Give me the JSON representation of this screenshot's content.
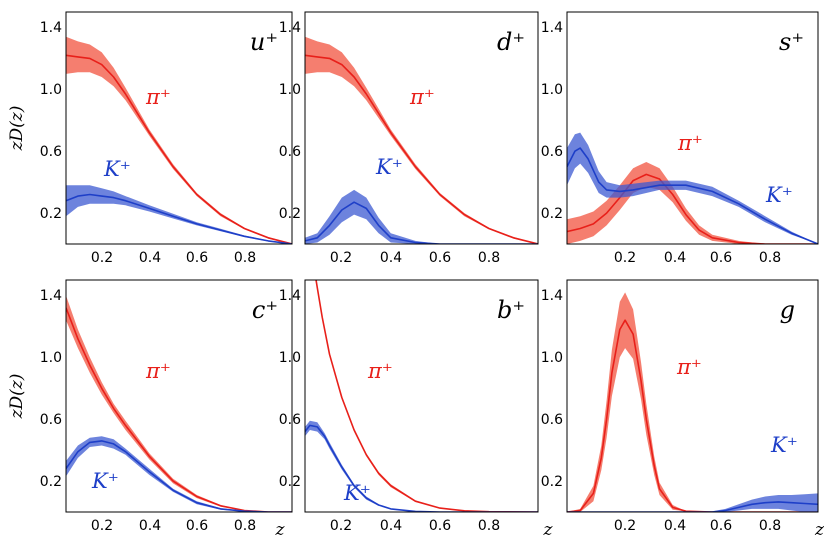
{
  "chart_data": [
    {
      "type": "area",
      "title": "u⁺",
      "xlim": [
        0.05,
        1.0
      ],
      "ylim": [
        0.0,
        1.5
      ],
      "ylabel": "zD(z)",
      "xlabel": "",
      "xticks": [
        "0.2",
        "0.4",
        "0.6",
        "0.8"
      ],
      "yticks": [
        "0.2",
        "0.6",
        "1.0",
        "1.4"
      ],
      "series": [
        {
          "name": "π⁺",
          "color": "#e8201a",
          "band_color": "#f2533f",
          "x": [
            0.05,
            0.1,
            0.15,
            0.2,
            0.25,
            0.3,
            0.4,
            0.5,
            0.6,
            0.7,
            0.8,
            0.9,
            1.0
          ],
          "y": [
            1.22,
            1.21,
            1.2,
            1.16,
            1.08,
            0.97,
            0.72,
            0.5,
            0.32,
            0.19,
            0.1,
            0.04,
            0.0
          ],
          "band": [
            0.12,
            0.1,
            0.09,
            0.08,
            0.06,
            0.04,
            0.02,
            0.015,
            0.01,
            0.01,
            0.005,
            0.005,
            0.0
          ]
        },
        {
          "name": "K⁺",
          "color": "#1e3fc8",
          "band_color": "#3c5ad2",
          "x": [
            0.05,
            0.1,
            0.15,
            0.2,
            0.25,
            0.3,
            0.4,
            0.5,
            0.6,
            0.7,
            0.8,
            0.9,
            1.0
          ],
          "y": [
            0.28,
            0.31,
            0.32,
            0.31,
            0.3,
            0.28,
            0.23,
            0.18,
            0.13,
            0.09,
            0.05,
            0.02,
            0.0
          ],
          "band": [
            0.1,
            0.07,
            0.06,
            0.05,
            0.04,
            0.03,
            0.02,
            0.015,
            0.01,
            0.008,
            0.005,
            0.003,
            0.0
          ]
        }
      ]
    },
    {
      "type": "area",
      "title": "d⁺",
      "xlim": [
        0.05,
        1.0
      ],
      "ylim": [
        0.0,
        1.5
      ],
      "ylabel": "",
      "xlabel": "",
      "xticks": [
        "0.2",
        "0.4",
        "0.6",
        "0.8"
      ],
      "yticks": [
        "0.2",
        "0.6",
        "1.0",
        "1.4"
      ],
      "series": [
        {
          "name": "π⁺",
          "color": "#e8201a",
          "band_color": "#f2533f",
          "x": [
            0.05,
            0.1,
            0.15,
            0.2,
            0.25,
            0.3,
            0.4,
            0.5,
            0.6,
            0.7,
            0.8,
            0.9,
            1.0
          ],
          "y": [
            1.22,
            1.21,
            1.2,
            1.16,
            1.08,
            0.97,
            0.72,
            0.5,
            0.32,
            0.19,
            0.1,
            0.04,
            0.0
          ],
          "band": [
            0.12,
            0.1,
            0.09,
            0.08,
            0.06,
            0.04,
            0.02,
            0.015,
            0.01,
            0.01,
            0.005,
            0.005,
            0.0
          ]
        },
        {
          "name": "K⁺",
          "color": "#1e3fc8",
          "band_color": "#3c5ad2",
          "x": [
            0.05,
            0.1,
            0.15,
            0.2,
            0.25,
            0.3,
            0.35,
            0.4,
            0.5,
            0.6,
            0.8,
            1.0
          ],
          "y": [
            0.02,
            0.04,
            0.12,
            0.22,
            0.27,
            0.23,
            0.12,
            0.04,
            0.01,
            0.0,
            0.0,
            0.0
          ],
          "band": [
            0.02,
            0.03,
            0.06,
            0.08,
            0.08,
            0.07,
            0.05,
            0.03,
            0.01,
            0.0,
            0.0,
            0.0
          ]
        }
      ]
    },
    {
      "type": "area",
      "title": "s⁺",
      "xlim": [
        0.05,
        1.0
      ],
      "ylim": [
        0.0,
        1.5
      ],
      "ylabel": "",
      "xlabel": "",
      "xticks": [
        "0.2",
        "0.4",
        "0.6",
        "0.8"
      ],
      "yticks": [
        "0.2",
        "0.6",
        "1.0",
        "1.4"
      ],
      "series": [
        {
          "name": "π⁺",
          "color": "#e8201a",
          "band_color": "#f2533f",
          "x": [
            0.05,
            0.1,
            0.15,
            0.2,
            0.25,
            0.3,
            0.35,
            0.4,
            0.45,
            0.5,
            0.55,
            0.6,
            0.7,
            0.8,
            1.0
          ],
          "y": [
            0.08,
            0.1,
            0.13,
            0.2,
            0.3,
            0.41,
            0.45,
            0.42,
            0.32,
            0.19,
            0.09,
            0.04,
            0.01,
            0.0,
            0.0
          ],
          "band": [
            0.08,
            0.08,
            0.08,
            0.08,
            0.08,
            0.08,
            0.08,
            0.07,
            0.05,
            0.04,
            0.03,
            0.02,
            0.01,
            0.0,
            0.0
          ]
        },
        {
          "name": "K⁺",
          "color": "#1e3fc8",
          "band_color": "#3c5ad2",
          "x": [
            0.05,
            0.08,
            0.1,
            0.13,
            0.17,
            0.2,
            0.25,
            0.3,
            0.4,
            0.5,
            0.6,
            0.7,
            0.8,
            0.9,
            1.0
          ],
          "y": [
            0.5,
            0.6,
            0.62,
            0.55,
            0.4,
            0.35,
            0.34,
            0.35,
            0.38,
            0.38,
            0.34,
            0.26,
            0.16,
            0.07,
            0.0
          ],
          "band": [
            0.12,
            0.11,
            0.1,
            0.09,
            0.07,
            0.05,
            0.04,
            0.04,
            0.03,
            0.03,
            0.03,
            0.02,
            0.02,
            0.01,
            0.0
          ]
        }
      ]
    },
    {
      "type": "area",
      "title": "c⁺",
      "xlim": [
        0.05,
        1.0
      ],
      "ylim": [
        0.0,
        1.5
      ],
      "ylabel": "zD(z)",
      "xlabel": "z",
      "xticks": [
        "0.2",
        "0.4",
        "0.6",
        "0.8"
      ],
      "yticks": [
        "0.2",
        "0.6",
        "1.0",
        "1.4"
      ],
      "series": [
        {
          "name": "π⁺",
          "color": "#e8201a",
          "band_color": "#f2533f",
          "x": [
            0.05,
            0.1,
            0.15,
            0.2,
            0.25,
            0.3,
            0.4,
            0.5,
            0.6,
            0.7,
            0.8,
            0.9,
            1.0
          ],
          "y": [
            1.32,
            1.12,
            0.95,
            0.8,
            0.67,
            0.56,
            0.36,
            0.2,
            0.1,
            0.04,
            0.01,
            0.0,
            0.0
          ],
          "band": [
            0.08,
            0.06,
            0.05,
            0.04,
            0.03,
            0.03,
            0.02,
            0.015,
            0.01,
            0.005,
            0.0,
            0.0,
            0.0
          ]
        },
        {
          "name": "K⁺",
          "color": "#1e3fc8",
          "band_color": "#3c5ad2",
          "x": [
            0.05,
            0.1,
            0.15,
            0.2,
            0.25,
            0.3,
            0.4,
            0.5,
            0.6,
            0.7,
            0.8,
            0.9,
            1.0
          ],
          "y": [
            0.28,
            0.39,
            0.45,
            0.46,
            0.44,
            0.39,
            0.26,
            0.14,
            0.06,
            0.02,
            0.005,
            0.0,
            0.0
          ],
          "band": [
            0.05,
            0.04,
            0.03,
            0.03,
            0.03,
            0.02,
            0.02,
            0.01,
            0.01,
            0.005,
            0.0,
            0.0,
            0.0
          ]
        }
      ]
    },
    {
      "type": "area",
      "title": "b⁺",
      "xlim": [
        0.05,
        1.0
      ],
      "ylim": [
        0.0,
        1.5
      ],
      "ylabel": "",
      "xlabel": "z",
      "xticks": [
        "0.2",
        "0.4",
        "0.6",
        "0.8"
      ],
      "yticks": [
        "0.2",
        "0.6",
        "1.0",
        "1.4"
      ],
      "series": [
        {
          "name": "π⁺",
          "color": "#e8201a",
          "band_color": "#f2533f",
          "x": [
            0.09,
            0.1,
            0.12,
            0.15,
            0.2,
            0.25,
            0.3,
            0.35,
            0.4,
            0.5,
            0.6,
            0.7,
            0.8,
            1.0
          ],
          "y": [
            1.55,
            1.45,
            1.26,
            1.02,
            0.74,
            0.53,
            0.37,
            0.25,
            0.17,
            0.07,
            0.025,
            0.008,
            0.002,
            0.0
          ],
          "band": [
            0.01,
            0.01,
            0.01,
            0.01,
            0.01,
            0.01,
            0.01,
            0.01,
            0.01,
            0.005,
            0.0,
            0.0,
            0.0,
            0.0
          ]
        },
        {
          "name": "K⁺",
          "color": "#1e3fc8",
          "band_color": "#3c5ad2",
          "x": [
            0.05,
            0.07,
            0.1,
            0.13,
            0.15,
            0.2,
            0.25,
            0.3,
            0.35,
            0.4,
            0.5,
            0.6,
            0.7,
            1.0
          ],
          "y": [
            0.52,
            0.56,
            0.55,
            0.49,
            0.43,
            0.29,
            0.17,
            0.09,
            0.045,
            0.02,
            0.004,
            0.0,
            0.0,
            0.0
          ],
          "band": [
            0.03,
            0.03,
            0.03,
            0.02,
            0.02,
            0.015,
            0.01,
            0.01,
            0.005,
            0.0,
            0.0,
            0.0,
            0.0,
            0.0
          ]
        }
      ]
    },
    {
      "type": "area",
      "title": "g",
      "xlim": [
        0.05,
        1.0
      ],
      "ylim": [
        0.0,
        1.5
      ],
      "ylabel": "",
      "xlabel": "z",
      "xticks": [
        "0.2",
        "0.4",
        "0.6",
        "0.8"
      ],
      "yticks": [
        "0.2",
        "0.6",
        "1.0",
        "1.4"
      ],
      "series": [
        {
          "name": "π⁺",
          "color": "#e8201a",
          "band_color": "#f2533f",
          "x": [
            0.05,
            0.1,
            0.15,
            0.18,
            0.2,
            0.22,
            0.25,
            0.27,
            0.3,
            0.33,
            0.35,
            0.38,
            0.4,
            0.45,
            0.5,
            0.6,
            1.0
          ],
          "y": [
            0.0,
            0.01,
            0.12,
            0.35,
            0.6,
            0.9,
            1.18,
            1.24,
            1.15,
            0.85,
            0.6,
            0.3,
            0.15,
            0.03,
            0.005,
            0.0,
            0.0
          ],
          "band": [
            0.0,
            0.01,
            0.05,
            0.08,
            0.12,
            0.15,
            0.18,
            0.18,
            0.16,
            0.12,
            0.1,
            0.06,
            0.04,
            0.015,
            0.0,
            0.0,
            0.0
          ]
        },
        {
          "name": "K⁺",
          "color": "#1e3fc8",
          "band_color": "#3c5ad2",
          "x": [
            0.05,
            0.5,
            0.6,
            0.65,
            0.7,
            0.75,
            0.8,
            0.85,
            0.9,
            0.95,
            1.0
          ],
          "y": [
            0.0,
            0.0,
            0.0,
            0.01,
            0.03,
            0.05,
            0.06,
            0.065,
            0.06,
            0.055,
            0.05
          ],
          "band": [
            0.0,
            0.0,
            0.005,
            0.01,
            0.02,
            0.03,
            0.04,
            0.045,
            0.05,
            0.06,
            0.07
          ]
        }
      ]
    }
  ]
}
